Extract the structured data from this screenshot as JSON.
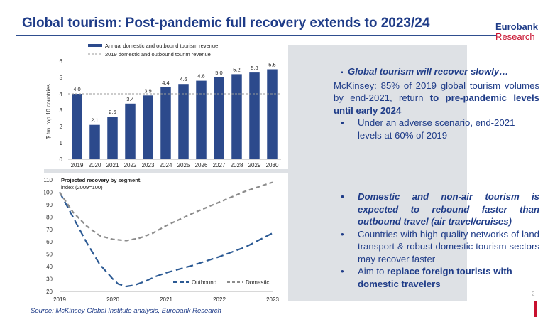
{
  "header": {
    "title": "Global tourism: Post-pandemic full recovery extends to 2023/24",
    "logo_line1": "Eurobank",
    "logo_line2": "Research"
  },
  "chart_revenue": {
    "type": "bar",
    "legend_bar": "Annual domestic and outbound tourism revenue",
    "legend_line": "2019 domestic and outbound tourim revenue",
    "ylabel": "$ trn, top 10 countries",
    "categories": [
      "2019",
      "2020",
      "2021",
      "2022",
      "2023",
      "2024",
      "2025",
      "2026",
      "2027",
      "2028",
      "2029",
      "2030"
    ],
    "values": [
      4.0,
      2.1,
      2.6,
      3.4,
      3.9,
      4.4,
      4.6,
      4.8,
      5.0,
      5.2,
      5.3,
      5.5
    ],
    "value_labels": [
      "4.0",
      "2.1",
      "2.6",
      "3.4",
      "3.9",
      "4.4",
      "4.6",
      "4.8",
      "5.0",
      "5.2",
      "5.3",
      "5.5"
    ],
    "ref_line": 4.0,
    "ylim": [
      0,
      6
    ],
    "yticks": [
      "0",
      "1",
      "2",
      "3",
      "4",
      "5",
      "6"
    ],
    "color": "#2c4a8c"
  },
  "chart_recovery": {
    "type": "line",
    "title_line1": "Projected recovery by segment,",
    "title_line2": "index (2009=100)",
    "ylim": [
      20,
      110
    ],
    "yticks": [
      "20",
      "30",
      "40",
      "50",
      "60",
      "70",
      "80",
      "90",
      "100",
      "110"
    ],
    "xticks": [
      "2019",
      "2020",
      "2021",
      "2022",
      "2023"
    ],
    "series": [
      {
        "name": "Outbound",
        "color": "#2c5a94",
        "x": [
          2019,
          2019.25,
          2019.5,
          2019.75,
          2020,
          2020.1,
          2020.25,
          2020.4,
          2020.6,
          2020.8,
          2021,
          2021.5,
          2022,
          2022.5,
          2023
        ],
        "y": [
          100,
          80,
          60,
          42,
          30,
          26,
          24,
          25,
          28,
          32,
          35,
          41,
          48,
          56,
          67
        ]
      },
      {
        "name": "Domestic",
        "color": "#8c8c8c",
        "x": [
          2019,
          2019.25,
          2019.5,
          2019.75,
          2020,
          2020.25,
          2020.5,
          2020.75,
          2021,
          2021.5,
          2022,
          2022.5,
          2023
        ],
        "y": [
          100,
          84,
          73,
          65,
          62,
          61,
          63,
          67,
          73,
          83,
          92,
          101,
          108
        ]
      }
    ]
  },
  "right_text": {
    "s1_heading": "Global tourism will recover slowly…",
    "s1_p1_pre": "McKinsey: 85% of 2019 global tourism volumes by end-2021, return ",
    "s1_p1_bold": "to pre-pandemic levels until early 2024",
    "s1_b1": "Under an adverse scenario, end-2021 levels at 60% of 2019",
    "s2_b1": "Domestic and non-air tourism is expected to rebound faster than outbound travel (air travel/cruises)",
    "s2_b2": "Countries with high-quality networks of land transport & robust domestic tourism sectors may recover faster",
    "s2_b3_pre": "Aim to ",
    "s2_b3_bold": "replace foreign tourists with domestic travelers"
  },
  "footer": {
    "source": "Source: McKinsey Global Institute analysis, Eurobank Research",
    "page_number": "2"
  }
}
